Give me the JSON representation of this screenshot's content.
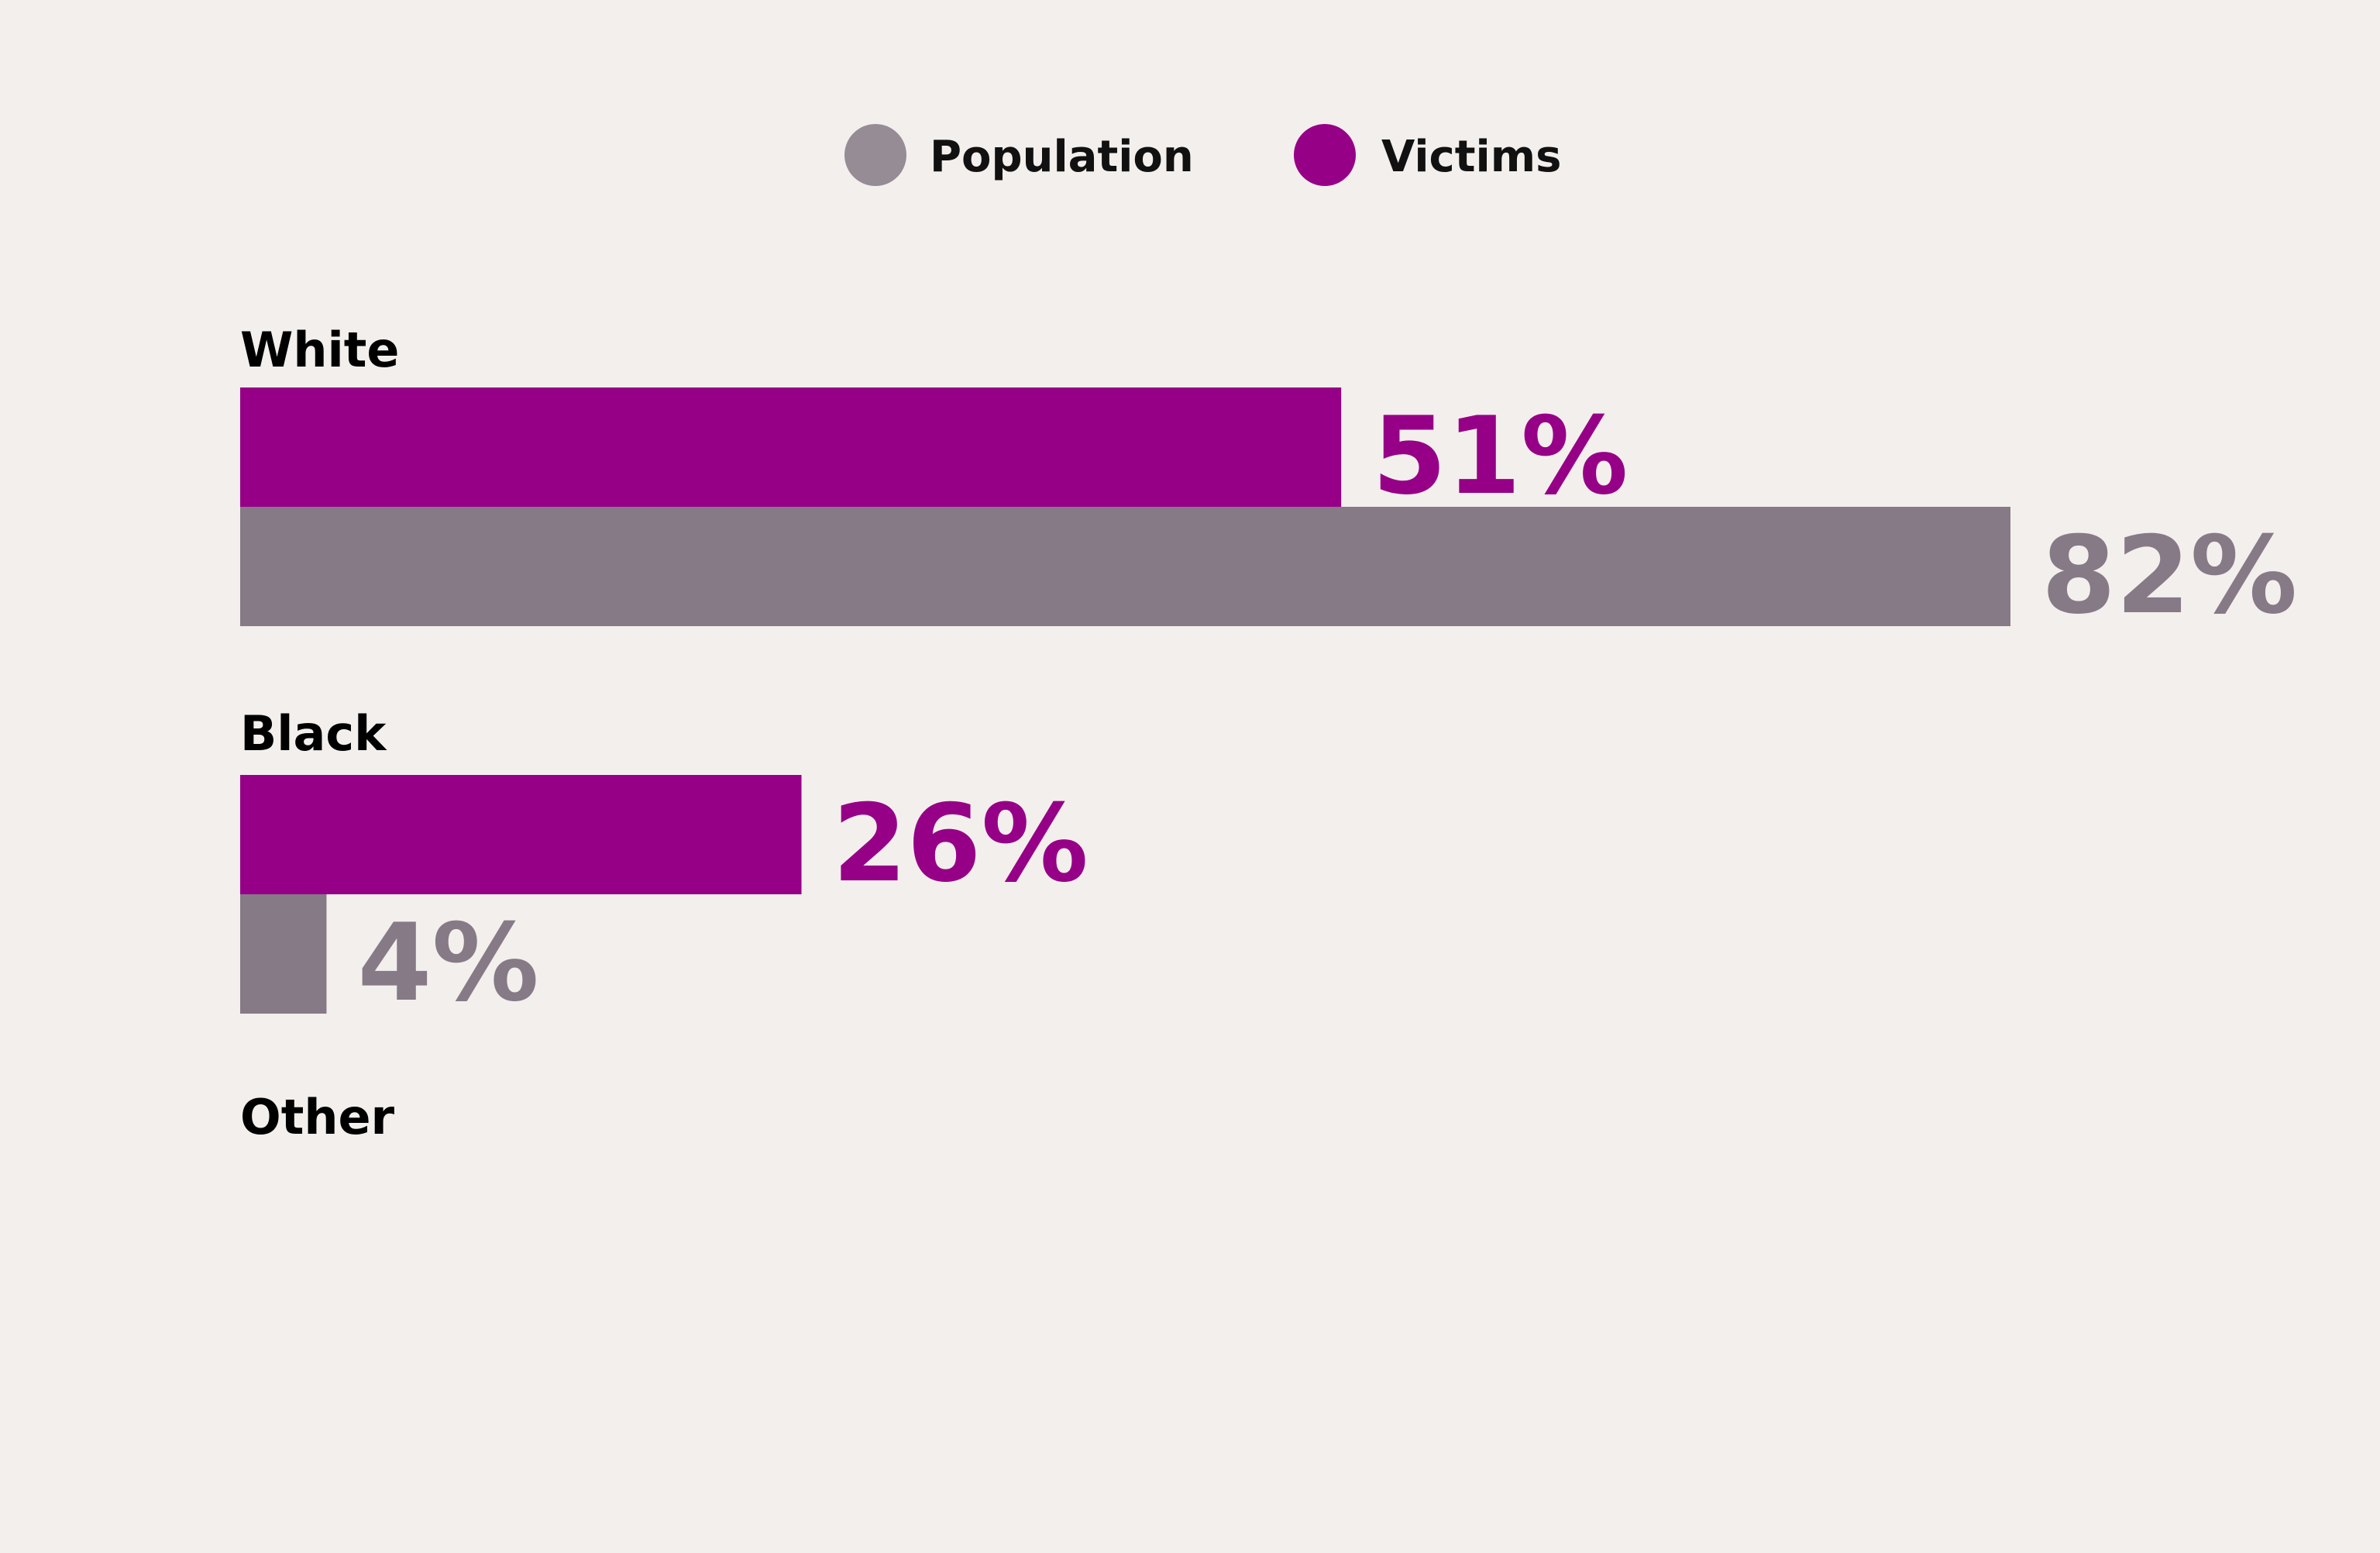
{
  "chart_data": {
    "type": "bar",
    "orientation": "horizontal",
    "categories": [
      "White",
      "Black",
      "Other"
    ],
    "series": [
      {
        "name": "Victims",
        "values": [
          51,
          26,
          null
        ],
        "labels": [
          "51%",
          "26%",
          ""
        ]
      },
      {
        "name": "Population",
        "values": [
          82,
          4,
          null
        ],
        "labels": [
          "82%",
          "4%",
          ""
        ]
      }
    ],
    "legend": {
      "placement": "top-center",
      "items": [
        {
          "label": "Population",
          "color": "#958c96"
        },
        {
          "label": "Victims",
          "color": "#960087"
        }
      ]
    },
    "colors": {
      "victims": "#960087",
      "population": "#867a87",
      "population_legend": "#958c96",
      "background": "#f3efec"
    },
    "xlim": [
      0,
      100
    ],
    "grid": false
  }
}
